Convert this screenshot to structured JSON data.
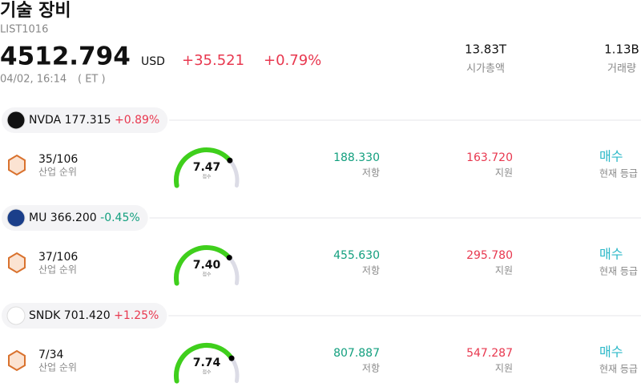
{
  "header": {
    "title": "기술 장비",
    "code": "LIST1016",
    "price": "4512.794",
    "currency": "USD",
    "change": "+35.521",
    "change_pct": "+0.79%",
    "datetime": "04/02, 16:14",
    "timezone": "( ET )",
    "stats": [
      {
        "value": "13.83T",
        "label": "시가총액"
      },
      {
        "value": "1.13B",
        "label": "거래량"
      }
    ]
  },
  "stocks": [
    {
      "ticker": "NVDA",
      "price": "177.315",
      "change": "+0.89%",
      "rank": "35/106",
      "rank_label": "산업 순위",
      "score": "7.47",
      "score_label": "점수",
      "resistance": "188.330",
      "resistance_label": "저항",
      "support": "163.720",
      "support_label": "지원",
      "rating": "매수",
      "rating_label": "현재 등급"
    },
    {
      "ticker": "MU",
      "price": "366.200",
      "change": "-0.45%",
      "rank": "37/106",
      "rank_label": "산업 순위",
      "score": "7.40",
      "score_label": "점수",
      "resistance": "455.630",
      "resistance_label": "저항",
      "support": "295.780",
      "support_label": "지원",
      "rating": "매수",
      "rating_label": "현재 등급"
    },
    {
      "ticker": "SNDK",
      "price": "701.420",
      "change": "+1.25%",
      "rank": "7/34",
      "rank_label": "산업 순위",
      "score": "7.74",
      "score_label": "점수",
      "resistance": "807.887",
      "resistance_label": "저항",
      "support": "547.287",
      "support_label": "지원",
      "rating": "매수",
      "rating_label": "현재 등급"
    }
  ]
}
